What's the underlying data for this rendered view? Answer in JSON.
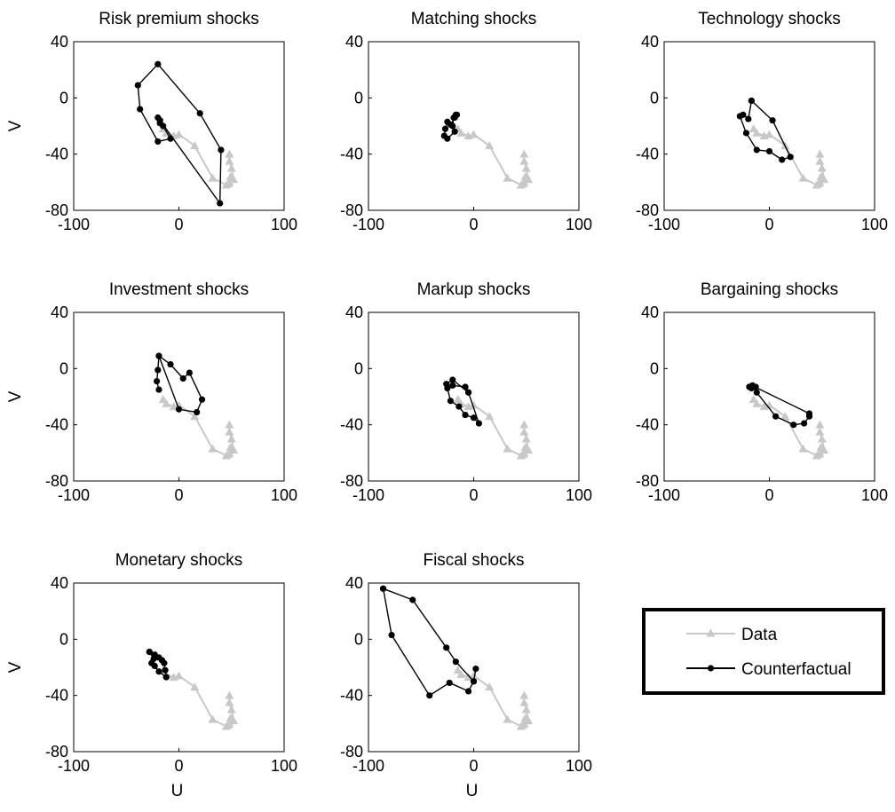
{
  "figure": {
    "xlabel": "U",
    "ylabel": "V",
    "xticks": [
      "-100",
      "0",
      "100"
    ],
    "yticks": [
      "40",
      "0",
      "-40",
      "-80"
    ]
  },
  "legend": {
    "items": [
      {
        "label": "Data",
        "color": "#c8c8c8",
        "marker": "triangle"
      },
      {
        "label": "Counterfactual",
        "color": "#000000",
        "marker": "circle"
      }
    ]
  },
  "chart_data": [
    {
      "type": "line",
      "title": "Risk premium shocks",
      "xlim": [
        -100,
        100
      ],
      "ylim": [
        -80,
        40
      ],
      "grid": false,
      "series": [
        {
          "name": "Data",
          "color": "#c8c8c8",
          "marker": "triangle",
          "x": [
            -15,
            -12,
            -5,
            0,
            15,
            32,
            45,
            47,
            48,
            49,
            52,
            50,
            48,
            48
          ],
          "y": [
            -22,
            -25,
            -27,
            -26,
            -34,
            -57,
            -62,
            -61,
            -60,
            -56,
            -58,
            -50,
            -45,
            -40
          ]
        },
        {
          "name": "Counterfactual",
          "color": "#000000",
          "marker": "circle",
          "x": [
            -18,
            -20,
            -18,
            -15,
            -8,
            -20,
            -37,
            -39,
            -20,
            20,
            40,
            39,
            -18
          ],
          "y": [
            -16,
            -14,
            -18,
            -20,
            -29,
            -31,
            -8,
            9,
            24,
            -11,
            -37,
            -75,
            -16
          ]
        }
      ]
    },
    {
      "type": "line",
      "title": "Matching shocks",
      "xlim": [
        -100,
        100
      ],
      "ylim": [
        -80,
        40
      ],
      "grid": false,
      "series": [
        {
          "name": "Data",
          "color": "#c8c8c8",
          "marker": "triangle",
          "x": [
            -15,
            -12,
            -5,
            0,
            15,
            32,
            45,
            47,
            48,
            49,
            52,
            50,
            48,
            48
          ],
          "y": [
            -22,
            -25,
            -27,
            -26,
            -34,
            -57,
            -62,
            -61,
            -60,
            -56,
            -58,
            -50,
            -45,
            -40
          ]
        },
        {
          "name": "Counterfactual",
          "color": "#000000",
          "marker": "circle",
          "x": [
            -16,
            -19,
            -20,
            -18,
            -25,
            -28,
            -27,
            -25,
            -22,
            -18,
            -17
          ],
          "y": [
            -12,
            -14,
            -20,
            -24,
            -29,
            -27,
            -22,
            -17,
            -19,
            -14,
            -12
          ]
        }
      ]
    },
    {
      "type": "line",
      "title": "Technology shocks",
      "xlim": [
        -100,
        100
      ],
      "ylim": [
        -80,
        40
      ],
      "grid": false,
      "series": [
        {
          "name": "Data",
          "color": "#c8c8c8",
          "marker": "triangle",
          "x": [
            -15,
            -12,
            -5,
            0,
            15,
            32,
            45,
            47,
            48,
            49,
            52,
            50,
            48,
            48
          ],
          "y": [
            -22,
            -25,
            -27,
            -26,
            -34,
            -57,
            -62,
            -61,
            -60,
            -56,
            -58,
            -50,
            -45,
            -40
          ]
        },
        {
          "name": "Counterfactual",
          "color": "#000000",
          "marker": "circle",
          "x": [
            -17,
            3,
            20,
            12,
            0,
            -12,
            -22,
            -28,
            -25,
            -20,
            -17
          ],
          "y": [
            -2,
            -16,
            -42,
            -44,
            -38,
            -37,
            -25,
            -13,
            -12,
            -15,
            -2
          ]
        }
      ]
    },
    {
      "type": "line",
      "title": "Investment shocks",
      "xlim": [
        -100,
        100
      ],
      "ylim": [
        -80,
        40
      ],
      "grid": false,
      "series": [
        {
          "name": "Data",
          "color": "#c8c8c8",
          "marker": "triangle",
          "x": [
            -15,
            -12,
            -5,
            0,
            15,
            32,
            45,
            47,
            48,
            49,
            52,
            50,
            48,
            48
          ],
          "y": [
            -22,
            -25,
            -27,
            -26,
            -34,
            -57,
            -62,
            -61,
            -60,
            -56,
            -58,
            -50,
            -45,
            -40
          ]
        },
        {
          "name": "Counterfactual",
          "color": "#000000",
          "marker": "circle",
          "x": [
            -19,
            -21,
            -20,
            -19,
            0,
            17,
            22,
            10,
            4,
            -8,
            -19
          ],
          "y": [
            -15,
            -9,
            -1,
            9,
            -29,
            -31,
            -22,
            -3,
            -7,
            3,
            9
          ]
        }
      ]
    },
    {
      "type": "line",
      "title": "Markup shocks",
      "xlim": [
        -100,
        100
      ],
      "ylim": [
        -80,
        40
      ],
      "grid": false,
      "series": [
        {
          "name": "Data",
          "color": "#c8c8c8",
          "marker": "triangle",
          "x": [
            -15,
            -12,
            -5,
            0,
            15,
            32,
            45,
            47,
            48,
            49,
            52,
            50,
            48,
            48
          ],
          "y": [
            -22,
            -25,
            -27,
            -26,
            -34,
            -57,
            -62,
            -61,
            -60,
            -56,
            -58,
            -50,
            -45,
            -40
          ]
        },
        {
          "name": "Counterfactual",
          "color": "#000000",
          "marker": "circle",
          "x": [
            -26,
            -20,
            -5,
            5,
            0,
            -8,
            -14,
            -22,
            -25,
            -20,
            -8,
            -5
          ],
          "y": [
            -11,
            -8,
            -17,
            -39,
            -35,
            -33,
            -27,
            -23,
            -14,
            -12,
            -13,
            -17
          ]
        }
      ]
    },
    {
      "type": "line",
      "title": "Bargaining shocks",
      "xlim": [
        -100,
        100
      ],
      "ylim": [
        -80,
        40
      ],
      "grid": false,
      "series": [
        {
          "name": "Data",
          "color": "#c8c8c8",
          "marker": "triangle",
          "x": [
            -15,
            -12,
            -5,
            0,
            15,
            32,
            45,
            47,
            48,
            49,
            52,
            50,
            48,
            48
          ],
          "y": [
            -22,
            -25,
            -27,
            -26,
            -34,
            -57,
            -62,
            -61,
            -60,
            -56,
            -58,
            -50,
            -45,
            -40
          ]
        },
        {
          "name": "Counterfactual",
          "color": "#000000",
          "marker": "circle",
          "x": [
            -19,
            -16,
            -13,
            -12,
            6,
            23,
            33,
            38,
            38,
            -14,
            -17,
            -19
          ],
          "y": [
            -13,
            -12,
            -13,
            -17,
            -34,
            -40,
            -39,
            -34,
            -32,
            -13,
            -14,
            -13
          ]
        }
      ]
    },
    {
      "type": "line",
      "title": "Monetary shocks",
      "xlim": [
        -100,
        100
      ],
      "ylim": [
        -80,
        40
      ],
      "grid": false,
      "series": [
        {
          "name": "Data",
          "color": "#c8c8c8",
          "marker": "triangle",
          "x": [
            -15,
            -12,
            -5,
            0,
            15,
            32,
            45,
            47,
            48,
            49,
            52,
            50,
            48,
            48
          ],
          "y": [
            -22,
            -25,
            -27,
            -26,
            -34,
            -57,
            -62,
            -61,
            -60,
            -56,
            -58,
            -50,
            -45,
            -40
          ]
        },
        {
          "name": "Counterfactual",
          "color": "#000000",
          "marker": "circle",
          "x": [
            -28,
            -23,
            -19,
            -16,
            -14,
            -13,
            -12,
            -19,
            -23,
            -26,
            -24,
            -28
          ],
          "y": [
            -9,
            -11,
            -13,
            -15,
            -17,
            -22,
            -27,
            -23,
            -19,
            -17,
            -14,
            -9
          ]
        }
      ]
    },
    {
      "type": "line",
      "title": "Fiscal shocks",
      "xlim": [
        -100,
        100
      ],
      "ylim": [
        -80,
        40
      ],
      "grid": false,
      "series": [
        {
          "name": "Data",
          "color": "#c8c8c8",
          "marker": "triangle",
          "x": [
            -15,
            -12,
            -5,
            0,
            15,
            32,
            45,
            47,
            48,
            49,
            52,
            50,
            48,
            48
          ],
          "y": [
            -22,
            -25,
            -27,
            -26,
            -34,
            -57,
            -62,
            -61,
            -60,
            -56,
            -58,
            -50,
            -45,
            -40
          ]
        },
        {
          "name": "Counterfactual",
          "color": "#000000",
          "marker": "circle",
          "x": [
            -86,
            -78,
            -42,
            -23,
            -5,
            0,
            2,
            0,
            -17,
            -26,
            -58,
            -86
          ],
          "y": [
            36,
            3,
            -40,
            -31,
            -37,
            -30,
            -21,
            -30,
            -16,
            -6,
            28,
            36
          ]
        }
      ]
    }
  ]
}
